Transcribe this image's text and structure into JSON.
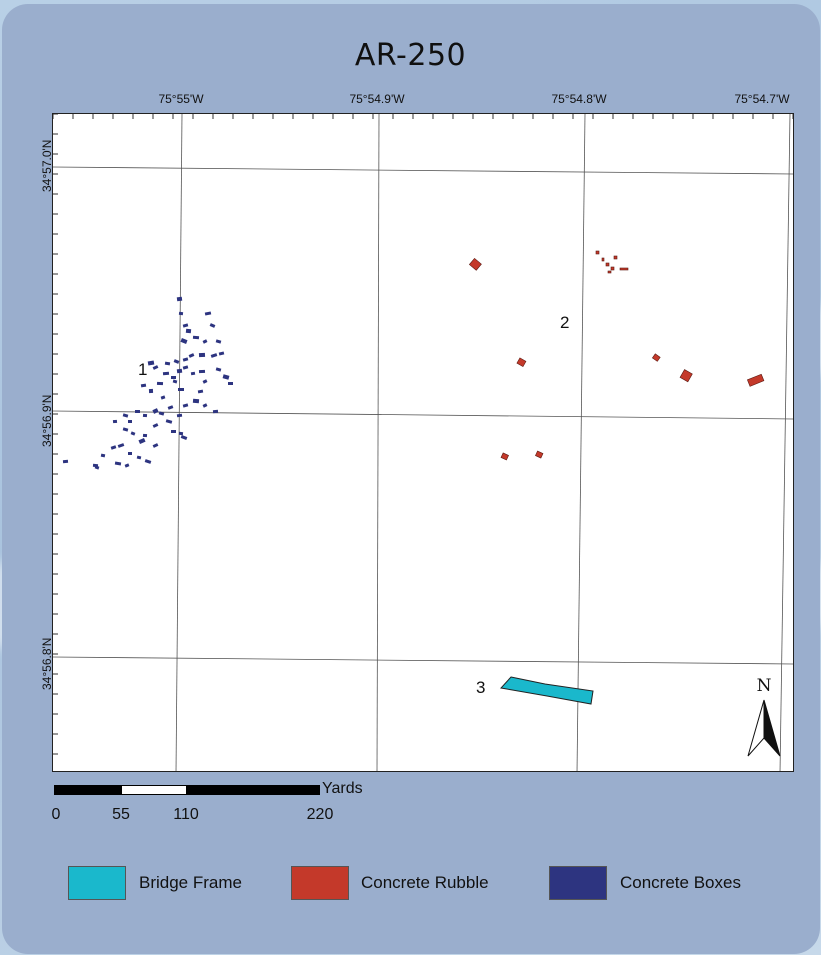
{
  "title": "AR-250",
  "longitude_labels": [
    "75°55'W",
    "75°54.9'W",
    "75°54.8'W",
    "75°54.7'W"
  ],
  "latitude_labels": [
    "34°57.0'N",
    "34°56.9'N",
    "34°56.8'N"
  ],
  "site_labels": [
    "1",
    "2",
    "3"
  ],
  "north_label": "N",
  "scale": {
    "unit": "Yards",
    "ticks": [
      "0",
      "55",
      "110",
      "220"
    ]
  },
  "legend": [
    {
      "label": "Bridge Frame",
      "color": "#1ab8cc"
    },
    {
      "label": "Concrete Rubble",
      "color": "#c4392a"
    },
    {
      "label": "Concrete Boxes",
      "color": "#2d3480"
    }
  ],
  "colors": {
    "bridge_frame": "#1ab8cc",
    "concrete_rubble": "#c4392a",
    "concrete_boxes": "#2d3480",
    "card_background": "#9aaecd"
  }
}
